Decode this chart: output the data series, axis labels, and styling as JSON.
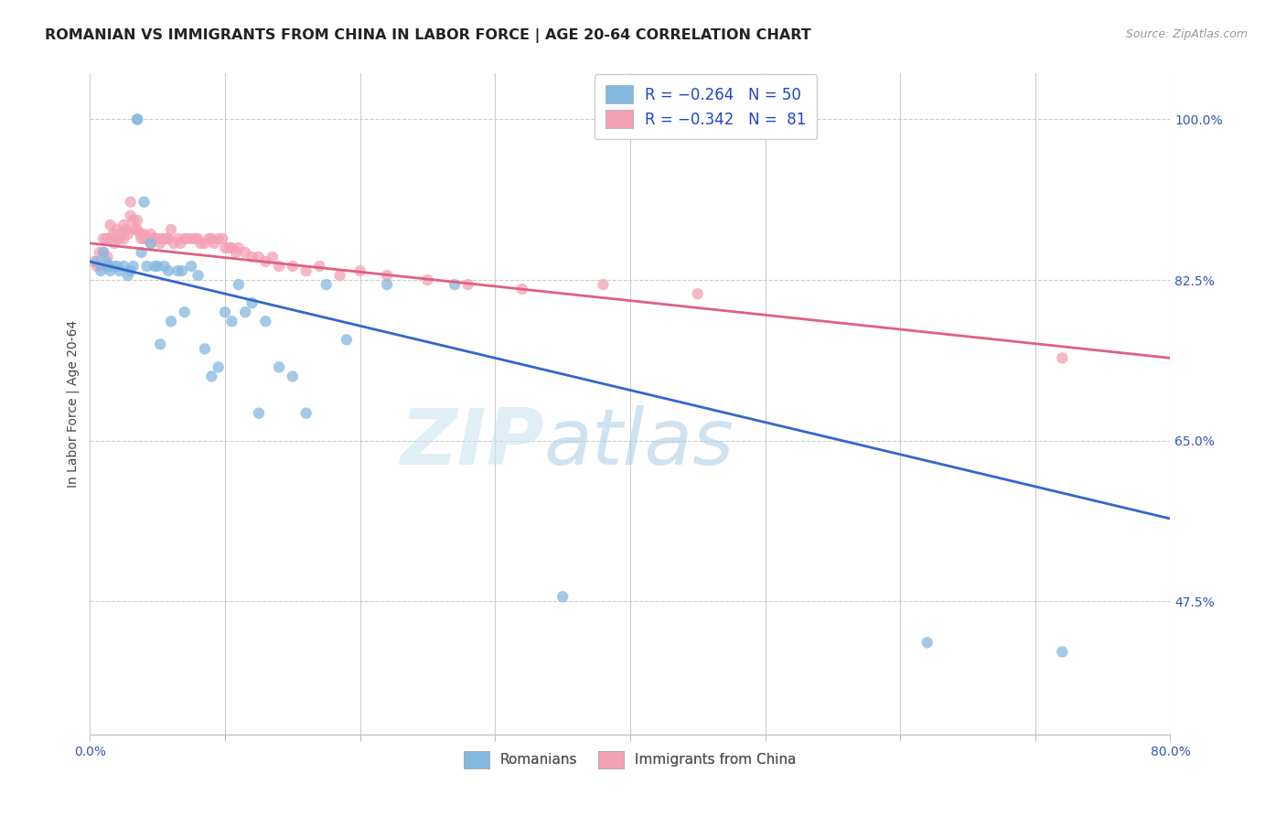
{
  "title": "ROMANIAN VS IMMIGRANTS FROM CHINA IN LABOR FORCE | AGE 20-64 CORRELATION CHART",
  "source": "Source: ZipAtlas.com",
  "ylabel": "In Labor Force | Age 20-64",
  "xlim": [
    0.0,
    0.8
  ],
  "ylim": [
    0.33,
    1.05
  ],
  "xticks": [
    0.0,
    0.1,
    0.2,
    0.3,
    0.4,
    0.5,
    0.6,
    0.7,
    0.8
  ],
  "xticklabels": [
    "0.0%",
    "",
    "",
    "",
    "",
    "",
    "",
    "",
    "80.0%"
  ],
  "yticks": [
    0.475,
    0.65,
    0.825,
    1.0
  ],
  "yticklabels": [
    "47.5%",
    "65.0%",
    "82.5%",
    "100.0%"
  ],
  "blue_color": "#85b8de",
  "pink_color": "#f4a0b5",
  "blue_line_color": "#3366cc",
  "pink_line_color": "#e06080",
  "background_color": "#ffffff",
  "tick_fontsize": 10,
  "title_fontsize": 11.5,
  "romanians_x": [
    0.005,
    0.008,
    0.01,
    0.012,
    0.013,
    0.015,
    0.017,
    0.02,
    0.022,
    0.025,
    0.028,
    0.03,
    0.032,
    0.035,
    0.035,
    0.038,
    0.04,
    0.042,
    0.045,
    0.048,
    0.05,
    0.052,
    0.055,
    0.058,
    0.06,
    0.065,
    0.068,
    0.07,
    0.075,
    0.08,
    0.085,
    0.09,
    0.095,
    0.1,
    0.105,
    0.11,
    0.115,
    0.12,
    0.125,
    0.13,
    0.14,
    0.15,
    0.16,
    0.175,
    0.19,
    0.22,
    0.27,
    0.35,
    0.62,
    0.72
  ],
  "romanians_y": [
    0.845,
    0.835,
    0.855,
    0.845,
    0.84,
    0.835,
    0.84,
    0.84,
    0.835,
    0.84,
    0.83,
    0.835,
    0.84,
    1.0,
    1.0,
    0.855,
    0.91,
    0.84,
    0.865,
    0.84,
    0.84,
    0.755,
    0.84,
    0.835,
    0.78,
    0.835,
    0.835,
    0.79,
    0.84,
    0.83,
    0.75,
    0.72,
    0.73,
    0.79,
    0.78,
    0.82,
    0.79,
    0.8,
    0.68,
    0.78,
    0.73,
    0.72,
    0.68,
    0.82,
    0.76,
    0.82,
    0.82,
    0.48,
    0.43,
    0.42
  ],
  "china_x": [
    0.003,
    0.005,
    0.007,
    0.008,
    0.01,
    0.01,
    0.012,
    0.013,
    0.015,
    0.015,
    0.017,
    0.018,
    0.02,
    0.02,
    0.022,
    0.023,
    0.025,
    0.025,
    0.027,
    0.028,
    0.03,
    0.03,
    0.032,
    0.033,
    0.035,
    0.035,
    0.037,
    0.038,
    0.04,
    0.04,
    0.042,
    0.043,
    0.045,
    0.045,
    0.047,
    0.048,
    0.05,
    0.052,
    0.053,
    0.055,
    0.057,
    0.058,
    0.06,
    0.062,
    0.065,
    0.067,
    0.07,
    0.072,
    0.075,
    0.078,
    0.08,
    0.082,
    0.085,
    0.088,
    0.09,
    0.092,
    0.095,
    0.098,
    0.1,
    0.103,
    0.105,
    0.108,
    0.11,
    0.115,
    0.12,
    0.125,
    0.13,
    0.135,
    0.14,
    0.15,
    0.16,
    0.17,
    0.185,
    0.2,
    0.22,
    0.25,
    0.28,
    0.32,
    0.38,
    0.45,
    0.72
  ],
  "china_y": [
    0.845,
    0.84,
    0.855,
    0.84,
    0.87,
    0.855,
    0.87,
    0.85,
    0.885,
    0.87,
    0.875,
    0.865,
    0.88,
    0.87,
    0.87,
    0.875,
    0.885,
    0.87,
    0.88,
    0.875,
    0.91,
    0.895,
    0.89,
    0.88,
    0.89,
    0.88,
    0.875,
    0.87,
    0.875,
    0.87,
    0.87,
    0.87,
    0.875,
    0.865,
    0.87,
    0.87,
    0.87,
    0.865,
    0.87,
    0.87,
    0.87,
    0.87,
    0.88,
    0.865,
    0.87,
    0.865,
    0.87,
    0.87,
    0.87,
    0.87,
    0.87,
    0.865,
    0.865,
    0.87,
    0.87,
    0.865,
    0.87,
    0.87,
    0.86,
    0.86,
    0.86,
    0.855,
    0.86,
    0.855,
    0.85,
    0.85,
    0.845,
    0.85,
    0.84,
    0.84,
    0.835,
    0.84,
    0.83,
    0.835,
    0.83,
    0.825,
    0.82,
    0.815,
    0.82,
    0.81,
    0.74
  ]
}
